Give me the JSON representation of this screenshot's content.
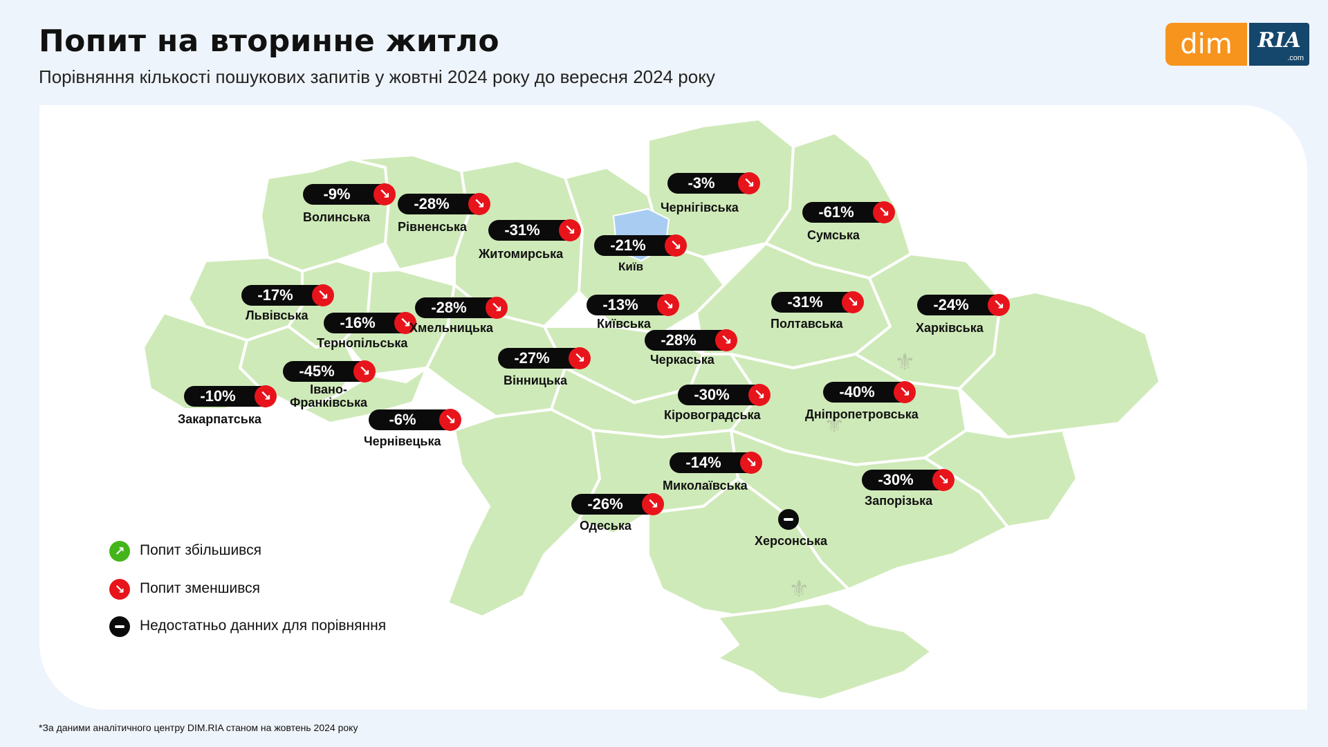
{
  "header": {
    "title": "Попит на вторинне житло",
    "subtitle": "Порівняння кількості пошукових запитів у жовтні 2024 року до вересня 2024 року"
  },
  "logo": {
    "dim": "dim",
    "ria": "RIA",
    "ria_suffix": ".com"
  },
  "colors": {
    "map_fill": "#cfeab9",
    "map_border": "#ffffff",
    "kyiv_fill": "#a9cdf2",
    "decrease": "#e8141b",
    "increase": "#43b51b",
    "no_data": "#0b0b0b",
    "logo_orange": "#f7941d",
    "logo_blue": "#15466b"
  },
  "city": {
    "name": "Київ"
  },
  "regions": [
    {
      "name": "Волинська",
      "value": "-9%",
      "trend": "down"
    },
    {
      "name": "Рівненська",
      "value": "-28%",
      "trend": "down"
    },
    {
      "name": "Житомирська",
      "value": "-31%",
      "trend": "down"
    },
    {
      "name": "Чернігівська",
      "value": "-3%",
      "trend": "down"
    },
    {
      "name": "Сумська",
      "value": "-61%",
      "trend": "down"
    },
    {
      "name": "Київська",
      "value": "-21%",
      "trend": "down"
    },
    {
      "name": "Київська",
      "value": "-13%",
      "trend": "down"
    },
    {
      "name": "Львівська",
      "value": "-17%",
      "trend": "down"
    },
    {
      "name": "Тернопільська",
      "value": "-16%",
      "trend": "down"
    },
    {
      "name": "Хмельницька",
      "value": "-28%",
      "trend": "down"
    },
    {
      "name": "Полтавська",
      "value": "-31%",
      "trend": "down"
    },
    {
      "name": "Харківська",
      "value": "-24%",
      "trend": "down"
    },
    {
      "name": "Черкаська",
      "value": "-28%",
      "trend": "down"
    },
    {
      "name": "Вінницька",
      "value": "-27%",
      "trend": "down"
    },
    {
      "name": "Івано-Франківська",
      "value": "-45%",
      "trend": "down"
    },
    {
      "name": "Закарпатська",
      "value": "-10%",
      "trend": "down"
    },
    {
      "name": "Кіровоградська",
      "value": "-30%",
      "trend": "down"
    },
    {
      "name": "Дніпропетровська",
      "value": "-40%",
      "trend": "down"
    },
    {
      "name": "Чернівецька",
      "value": "-6%",
      "trend": "down"
    },
    {
      "name": "Миколаївська",
      "value": "-14%",
      "trend": "down"
    },
    {
      "name": "Запорізька",
      "value": "-30%",
      "trend": "down"
    },
    {
      "name": "Одеська",
      "value": "-26%",
      "trend": "down"
    },
    {
      "name": "Херсонська",
      "value": "",
      "trend": "no_data"
    }
  ],
  "legend": [
    {
      "label": "Попит збільшився",
      "icon": "arrow-up-right-icon"
    },
    {
      "label": "Попит зменшився",
      "icon": "arrow-down-right-icon"
    },
    {
      "label": "Недостатньо данних для порівняння",
      "icon": "minus-icon"
    }
  ],
  "footnote": "*За даними аналітичного центру DIM.RIA станом на жовтень 2024 року"
}
